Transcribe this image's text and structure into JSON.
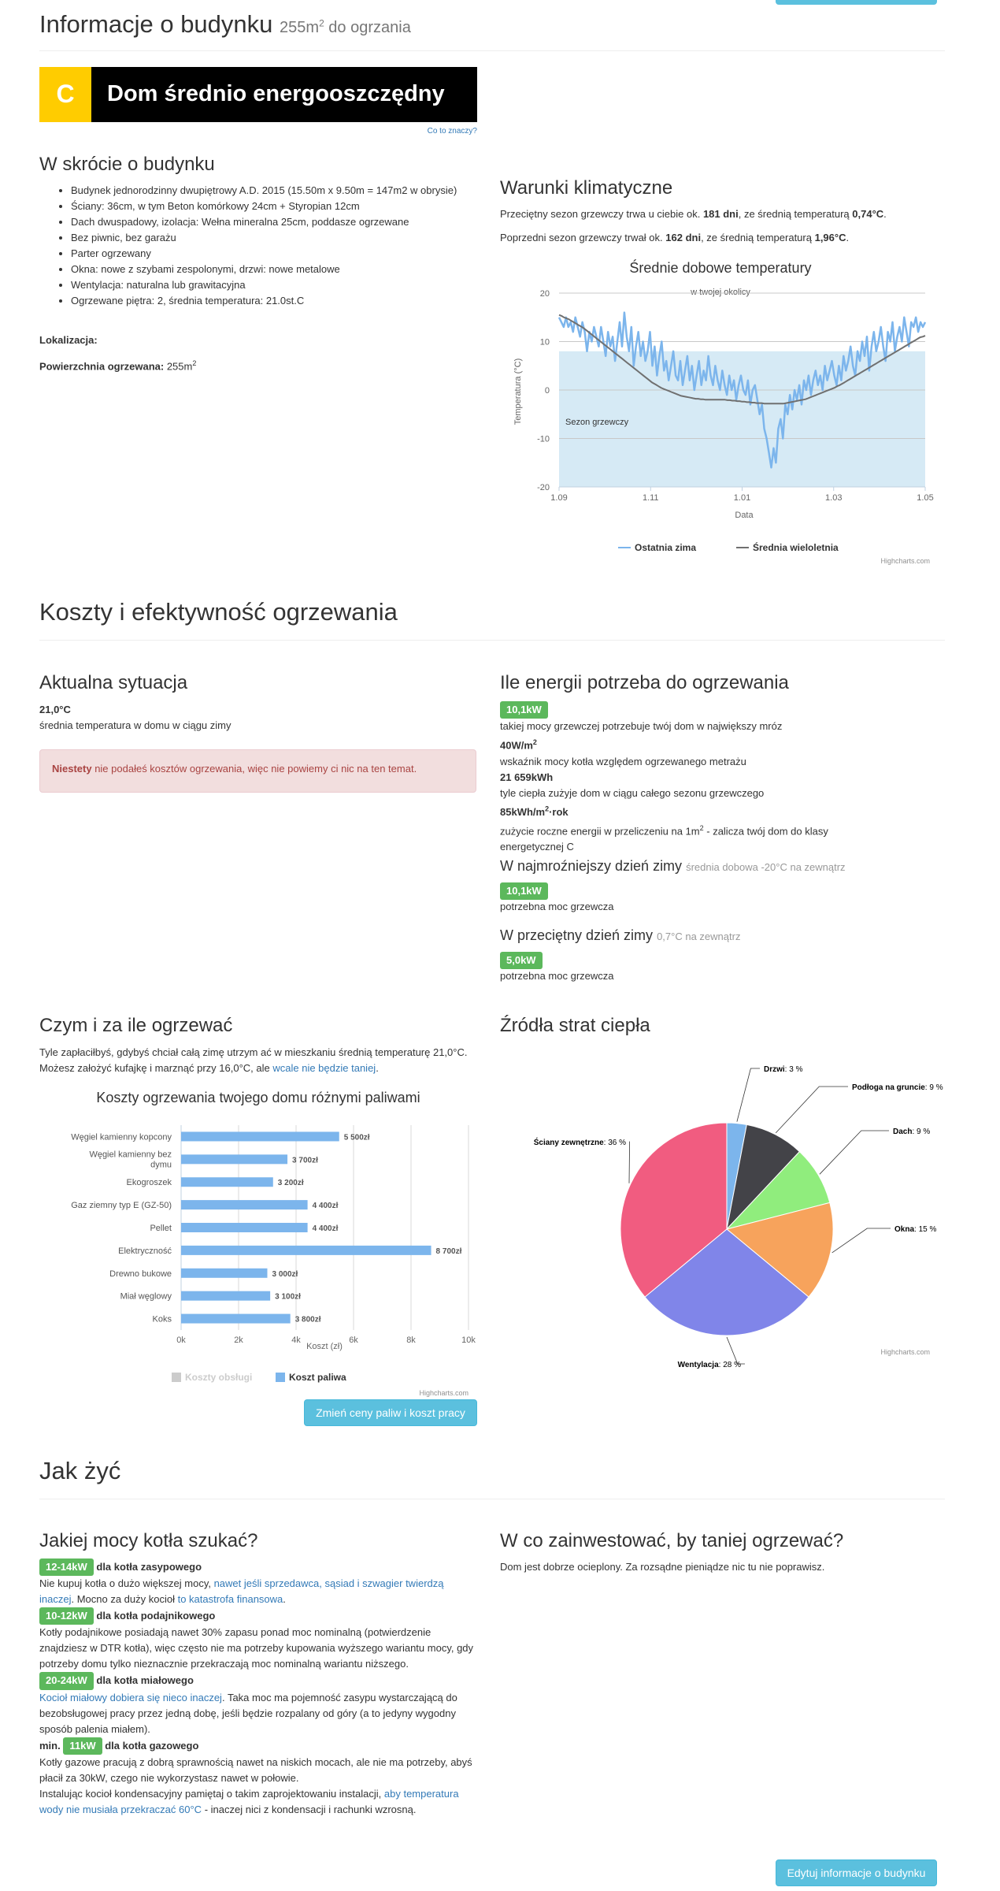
{
  "header": {
    "title": "Informacje o budynku",
    "area_prefix": "255m",
    "area_sup": "2",
    "area_suffix": " do ogrzania"
  },
  "energy_class": {
    "letter": "C",
    "label": "Dom średnio energooszczędny",
    "letter_bg": "#ffcc00",
    "help_link": "Co to znaczy?"
  },
  "summary": {
    "heading": "W skrócie o budynku",
    "items": [
      "Budynek jednorodzinny dwupiętrowy A.D. 2015 (15.50m x 9.50m = 147m2 w obrysie)",
      "Ściany: 36cm, w tym Beton komórkowy 24cm + Styropian 12cm",
      "Dach dwuspadowy, izolacja: Wełna mineralna 25cm, poddasze ogrzewane",
      "Bez piwnic, bez garażu",
      "Parter ogrzewany",
      "Okna: nowe z szybami zespolonymi, drzwi: nowe metalowe",
      "Wentylacja: naturalna lub grawitacyjna",
      "Ogrzewane piętra: 2, średnia temperatura: 21.0st.C"
    ],
    "location_label": "Lokalizacja:",
    "area_label": "Powierzchnia ogrzewana:",
    "area_value": "255m",
    "area_sup": "2"
  },
  "climate": {
    "heading": "Warunki klimatyczne",
    "line1_a": "Przeciętny sezon grzewczy trwa u ciebie ok. ",
    "line1_days": "181 dni",
    "line1_b": ", ze średnią temperaturą ",
    "line1_temp": "0,74°C",
    "line1_c": ".",
    "line2_a": "Poprzedni sezon grzewczy trwał ok. ",
    "line2_days": "162 dni",
    "line2_b": ", ze średnią temperaturą ",
    "line2_temp": "1,96°C",
    "line2_c": "."
  },
  "costs_section": {
    "title": "Koszty i efektywność ogrzewania"
  },
  "current": {
    "heading": "Aktualna sytuacja",
    "temp": "21,0°C",
    "temp_desc": "średnia temperatura w domu w ciągu zimy",
    "alert_strong": "Niestety",
    "alert_text": " nie podałeś kosztów ogrzewania, więc nie powiemy ci nic na ten temat."
  },
  "energy_need": {
    "heading": "Ile energii potrzeba do ogrzewania",
    "power_badge": "10,1kW",
    "power_desc": "takiej mocy grzewczej potrzebuje twój dom w największy mróz",
    "ratio": "40W/m",
    "ratio_sup": "2",
    "ratio_desc": "wskaźnik mocy kotła względem ogrzewanego metrażu",
    "season_energy": "21 659kWh",
    "season_desc": "tyle ciepła zużyje dom w ciągu całego sezonu grzewczego",
    "yearly": "85kWh/m",
    "yearly_sup": "2",
    "yearly_suffix": "·rok",
    "yearly_desc_a": "zużycie roczne energii w przeliczeniu na 1m",
    "yearly_desc_sup": "2",
    "yearly_desc_b": " - zalicza twój dom do klasy energetycznej C",
    "cold_heading": "W najmroźniejszy dzień zimy",
    "cold_note": "średnia dobowa -20°C na zewnątrz",
    "cold_badge": "10,1kW",
    "cold_desc": "potrzebna moc grzewcza",
    "avg_heading": "W przeciętny dzień zimy",
    "avg_note": "0,7°C na zewnątrz",
    "avg_badge": "5,0kW",
    "avg_desc": "potrzebna moc grzewcza"
  },
  "fuel": {
    "heading": "Czym i za ile ogrzewać",
    "text_a": "Tyle zapłaciłbyś, gdybyś chciał całą zimę utrzym ać w mieszkaniu średnią temperaturę 21,0°C. Możesz założyć kufajkę i marznąć przy 16,0°C, ale ",
    "text_link": "wcale nie będzie taniej",
    "text_b": ".",
    "button": "Zmień ceny paliw i koszt pracy"
  },
  "losses": {
    "heading": "Źródła strat ciepła"
  },
  "howto": {
    "title": "Jak żyć"
  },
  "boiler": {
    "heading": "Jakiej mocy kotła szukać?",
    "b1_badge": "12-14kW",
    "b1_label": "dla kotła zasypowego",
    "b1_text_a": "Nie kupuj kotła o dużo większej mocy, ",
    "b1_link1": "nawet jeśli sprzedawca, sąsiad i szwagier twierdzą inaczej",
    "b1_text_b": ". Mocno za duży kocioł ",
    "b1_link2": "to katastrofa finansowa",
    "b1_text_c": ".",
    "b2_badge": "10-12kW",
    "b2_label": "dla kotła podajnikowego",
    "b2_text": "Kotły podajnikowe posiadają nawet 30% zapasu ponad moc nominalną (potwierdzenie znajdziesz w DTR kotła), więc często nie ma potrzeby kupowania wyższego wariantu mocy, gdy potrzeby domu tylko nieznacznie przekraczają moc nominalną wariantu niższego.",
    "b3_badge": "20-24kW",
    "b3_label": "dla kotła miałowego",
    "b3_link": "Kocioł miałowy dobiera się nieco inaczej",
    "b3_text": ". Taka moc ma pojemność zasypu wystarczającą do bezobsługowej pracy przez jedną dobę, jeśli będzie rozpalany od góry (a to jedyny wygodny sposób palenia miałem).",
    "b4_prefix": "min.",
    "b4_badge": "11kW",
    "b4_label": "dla kotła gazowego",
    "b4_text": "Kotły gazowe pracują z dobrą sprawnością nawet na niskich mocach, ale nie ma potrzeby, abyś płacił za 30kW, czego nie wykorzystasz nawet w połowie.",
    "b4_text2_a": "Instalując kocioł kondensacyjny pamiętaj o takim zaprojektowaniu instalacji, ",
    "b4_link": "aby temperatura wody nie musiała przekraczać 60°C",
    "b4_text2_b": " - inaczej nici z kondensacji i rachunki wzrosną."
  },
  "invest": {
    "heading": "W co zainwestować, by taniej ogrzewać?",
    "text": "Dom jest dobrze ocieplony. Za rozsądne pieniądze nic tu nie poprawisz."
  },
  "edit_button": "Edytuj informacje o budynku",
  "chart_data": [
    {
      "type": "line",
      "title": "Średnie dobowe temperatury",
      "subtitle": "w twojej okolicy",
      "xlabel": "Data",
      "ylabel": "Temperatura (°C)",
      "x_ticks": [
        "1.09",
        "1.11",
        "1.01",
        "1.03",
        "1.05"
      ],
      "ylim": [
        -20,
        20
      ],
      "y_ticks": [
        20,
        10,
        0,
        -10,
        -20
      ],
      "band": {
        "label": "Sezon grzewczy",
        "from": -20,
        "to": 8
      },
      "series": [
        {
          "name": "Ostatnia zima",
          "color": "#7cb5ec",
          "values": [
            15,
            14,
            13,
            15,
            13,
            14,
            12,
            15,
            13,
            11,
            14,
            12,
            8,
            12,
            10,
            13,
            11,
            9,
            13,
            10,
            7,
            12,
            9,
            11,
            6,
            10,
            14,
            9,
            16,
            11,
            8,
            13,
            5,
            9,
            12,
            7,
            10,
            6,
            8,
            12,
            5,
            9,
            3,
            7,
            10,
            4,
            6,
            2,
            5,
            8,
            3,
            2,
            6,
            1,
            4,
            7,
            2,
            5,
            0,
            3,
            6,
            1,
            4,
            2,
            7,
            3,
            1,
            5,
            2,
            0,
            4,
            1,
            -1,
            3,
            0,
            2,
            -2,
            1,
            3,
            0,
            -1,
            2,
            -3,
            0,
            1,
            -2,
            -5,
            -3,
            -8,
            -10,
            -13,
            -16,
            -12,
            -15,
            -8,
            -6,
            -10,
            -3,
            -5,
            -1,
            -4,
            0,
            -2,
            1,
            -3,
            2,
            0,
            3,
            -1,
            2,
            4,
            1,
            3,
            0,
            5,
            2,
            4,
            6,
            3,
            1,
            5,
            2,
            7,
            4,
            6,
            9,
            5,
            3,
            8,
            6,
            10,
            7,
            11,
            4,
            9,
            12,
            8,
            10,
            13,
            9,
            6,
            12,
            10,
            14,
            8,
            11,
            13,
            10,
            15,
            12,
            9,
            14,
            13,
            15,
            12,
            14,
            13,
            14
          ]
        },
        {
          "name": "Średnia wieloletnia",
          "color": "#707070",
          "values": [
            15.5,
            15.3,
            15.0,
            14.8,
            14.6,
            14.3,
            14.0,
            13.7,
            13.4,
            13.1,
            12.8,
            12.4,
            12.0,
            11.6,
            11.2,
            10.8,
            10.4,
            10.0,
            9.6,
            9.2,
            8.8,
            8.4,
            8.0,
            7.6,
            7.2,
            6.8,
            6.4,
            6.0,
            5.6,
            5.2,
            4.8,
            4.4,
            4.0,
            3.6,
            3.2,
            2.8,
            2.4,
            2.0,
            1.6,
            1.3,
            1.0,
            0.7,
            0.4,
            0.2,
            0.0,
            -0.2,
            -0.4,
            -0.6,
            -0.8,
            -1.0,
            -1.2,
            -1.3,
            -1.4,
            -1.5,
            -1.6,
            -1.7,
            -1.8,
            -1.8,
            -1.9,
            -1.9,
            -2.0,
            -2.0,
            -2.0,
            -2.0,
            -2.0,
            -2.0,
            -2.0,
            -2.0,
            -2.0,
            -2.1,
            -2.1,
            -2.2,
            -2.2,
            -2.3,
            -2.3,
            -2.4,
            -2.4,
            -2.5,
            -2.5,
            -2.6,
            -2.6,
            -2.7,
            -2.7,
            -2.7,
            -2.8,
            -2.8,
            -2.8,
            -2.8,
            -2.8,
            -2.8,
            -2.8,
            -2.8,
            -2.8,
            -2.7,
            -2.6,
            -2.5,
            -2.4,
            -2.3,
            -2.2,
            -2.1,
            -2.0,
            -1.9,
            -1.7,
            -1.5,
            -1.3,
            -1.1,
            -0.9,
            -0.7,
            -0.5,
            -0.3,
            -0.1,
            0.1,
            0.3,
            0.5,
            0.8,
            1.0,
            1.3,
            1.6,
            1.9,
            2.2,
            2.5,
            2.8,
            3.1,
            3.4,
            3.7,
            4.0,
            4.3,
            4.6,
            4.9,
            5.2,
            5.5,
            5.8,
            6.1,
            6.4,
            6.7,
            7.0,
            7.3,
            7.6,
            7.9,
            8.2,
            8.5,
            8.8,
            9.1,
            9.4,
            9.7,
            10.0,
            10.3,
            10.6,
            10.9,
            11.0,
            11.2
          ]
        }
      ],
      "legend": "bottom-center"
    },
    {
      "type": "bar",
      "title": "Koszty ogrzewania twojego domu różnymi paliwami",
      "xlabel": "Koszt (zł)",
      "categories": [
        "Węgiel kamienny kopcony",
        "Węgiel kamienny bez dymu",
        "Ekogroszek",
        "Gaz ziemny typ E (GZ-50)",
        "Pellet",
        "Elektryczność",
        "Drewno bukowe",
        "Miał węglowy",
        "Koks"
      ],
      "series": [
        {
          "name": "Koszty obsługi",
          "color": "#cccccc",
          "values": [
            0,
            0,
            0,
            0,
            0,
            0,
            0,
            0,
            0
          ]
        },
        {
          "name": "Koszt paliwa",
          "color": "#7cb5ec",
          "values": [
            5500,
            3700,
            3200,
            4400,
            4400,
            8700,
            3000,
            3100,
            3800
          ]
        }
      ],
      "data_labels": [
        "5 500zł",
        "3 700zł",
        "3 200zł",
        "4 400zł",
        "4 400zł",
        "8 700zł",
        "3 000zł",
        "3 100zł",
        "3 800zł"
      ],
      "xlim": [
        0,
        10000
      ],
      "x_ticks": [
        "0k",
        "2k",
        "4k",
        "6k",
        "8k",
        "10k"
      ],
      "legend": "bottom-center"
    },
    {
      "type": "pie",
      "slices": [
        {
          "label": "Drzwi",
          "value": 3,
          "color": "#7cb5ec"
        },
        {
          "label": "Podłoga na gruncie",
          "value": 9,
          "color": "#434348"
        },
        {
          "label": "Dach",
          "value": 9,
          "color": "#90ed7d"
        },
        {
          "label": "Okna",
          "value": 15,
          "color": "#f7a35c"
        },
        {
          "label": "Wentylacja",
          "value": 28,
          "color": "#8085e9"
        },
        {
          "label": "Ściany zewnętrzne",
          "value": 36,
          "color": "#f15c80"
        }
      ]
    }
  ],
  "credits": "Highcharts.com"
}
